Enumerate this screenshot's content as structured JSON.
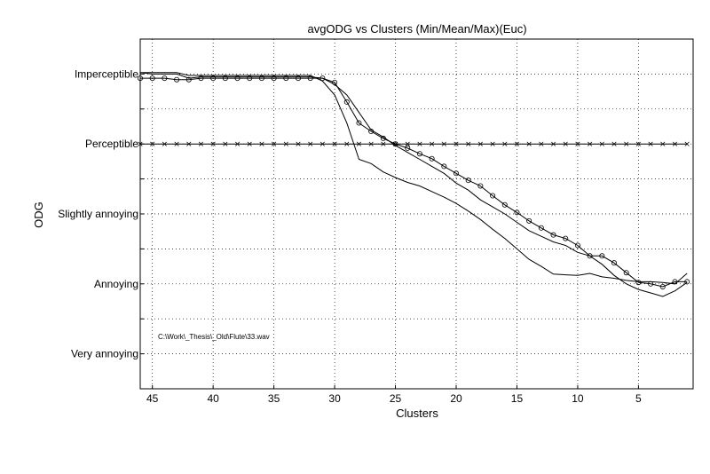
{
  "chart_data": {
    "type": "line",
    "title": "avgODG vs Clusters (Min/Mean/Max)(Euc)",
    "xlabel": "Clusters",
    "ylabel": "ODG",
    "xlim": [
      46,
      0.5
    ],
    "ylim": [
      -4.5,
      0.5
    ],
    "x_ticks": [
      45,
      40,
      35,
      30,
      25,
      20,
      15,
      10,
      5
    ],
    "y_ticks": [
      {
        "value": 0,
        "label": "Imperceptible"
      },
      {
        "value": -1,
        "label": "Perceptible"
      },
      {
        "value": -2,
        "label": "Slightly annoying"
      },
      {
        "value": -3,
        "label": "Annoying"
      },
      {
        "value": -4,
        "label": "Very annoying"
      }
    ],
    "grid": true,
    "annotation": "C:\\Work\\_Thesis\\_Old\\Flute\\33.wav",
    "x": [
      46,
      45,
      44,
      43,
      42,
      41,
      40,
      39,
      38,
      37,
      36,
      35,
      34,
      33,
      32,
      31,
      30,
      29,
      28,
      27,
      26,
      25,
      24,
      23,
      22,
      21,
      20,
      19,
      18,
      17,
      16,
      15,
      14,
      13,
      12,
      11,
      10,
      9,
      8,
      7,
      6,
      5,
      4,
      3,
      2,
      1
    ],
    "series": [
      {
        "marker": "none",
        "values": [
          0.02,
          0.02,
          0.02,
          0.02,
          -0.02,
          -0.02,
          -0.02,
          -0.02,
          -0.02,
          -0.02,
          -0.02,
          -0.02,
          -0.02,
          -0.02,
          -0.02,
          -0.1,
          -0.3,
          -0.7,
          -1.22,
          -1.28,
          -1.4,
          -1.48,
          -1.55,
          -1.6,
          -1.68,
          -1.76,
          -1.85,
          -1.96,
          -2.08,
          -2.22,
          -2.35,
          -2.5,
          -2.65,
          -2.75,
          -2.86,
          -2.87,
          -2.88,
          -2.85,
          -2.9,
          -2.92,
          -2.95,
          -2.97,
          -2.97,
          -2.98,
          -3.0,
          -2.85
        ]
      },
      {
        "marker": "circle",
        "values": [
          -0.06,
          -0.06,
          -0.06,
          -0.08,
          -0.08,
          -0.06,
          -0.06,
          -0.06,
          -0.06,
          -0.06,
          -0.06,
          -0.06,
          -0.06,
          -0.06,
          -0.06,
          -0.06,
          -0.12,
          -0.4,
          -0.7,
          -0.82,
          -0.92,
          -1.0,
          -1.06,
          -1.14,
          -1.21,
          -1.32,
          -1.42,
          -1.52,
          -1.6,
          -1.74,
          -1.87,
          -1.98,
          -2.1,
          -2.2,
          -2.3,
          -2.35,
          -2.45,
          -2.6,
          -2.6,
          -2.7,
          -2.84,
          -2.98,
          -3.0,
          -3.04,
          -2.97,
          -2.97
        ]
      },
      {
        "marker": "none",
        "values": [
          0.02,
          0.0,
          0.0,
          0.0,
          -0.06,
          -0.04,
          -0.04,
          -0.04,
          -0.04,
          -0.04,
          -0.04,
          -0.04,
          -0.04,
          -0.04,
          -0.04,
          -0.06,
          -0.15,
          -0.3,
          -0.55,
          -0.8,
          -0.9,
          -1.02,
          -1.12,
          -1.22,
          -1.32,
          -1.42,
          -1.56,
          -1.66,
          -1.8,
          -1.9,
          -2.0,
          -2.12,
          -2.24,
          -2.32,
          -2.4,
          -2.45,
          -2.55,
          -2.6,
          -2.72,
          -2.88,
          -3.0,
          -3.08,
          -3.13,
          -3.18,
          -3.1,
          -2.98
        ]
      },
      {
        "marker": "x",
        "values": [
          -1,
          -1,
          -1,
          -1,
          -1,
          -1,
          -1,
          -1,
          -1,
          -1,
          -1,
          -1,
          -1,
          -1,
          -1,
          -1,
          -1,
          -1,
          -1,
          -1,
          -1,
          -1,
          -1,
          -1,
          -1,
          -1,
          -1,
          -1,
          -1,
          -1,
          -1,
          -1,
          -1,
          -1,
          -1,
          -1,
          -1,
          -1,
          -1,
          -1,
          -1,
          -1,
          -1,
          -1,
          -1,
          -1
        ]
      }
    ]
  }
}
